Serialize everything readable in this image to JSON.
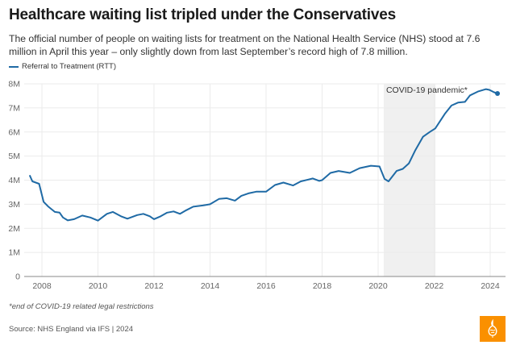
{
  "header": {
    "title": "Healthcare waiting list tripled under the Conservatives",
    "subtitle": "The official number of people on waiting lists for treatment on the National Health Service (NHS) stood at 7.6 million in April this year – only slightly down from last September’s record high of 7.8 million."
  },
  "legend": {
    "label": "Referral to Treatment (RTT)",
    "color": "#1f6aa5"
  },
  "footer": {
    "note": "*end of COVID-19 related legal restrictions",
    "source": "Source: NHS England via IFS | 2024",
    "logo": "Al Jazeera"
  },
  "chart_data": {
    "type": "line",
    "title": "Healthcare waiting list tripled under the Conservatives",
    "xlabel": "",
    "ylabel": "",
    "xlim": [
      2007.45,
      2024.5
    ],
    "ylim": [
      0,
      8000000
    ],
    "grid": true,
    "legend_position": "top-left",
    "x_ticks": [
      2008,
      2010,
      2012,
      2014,
      2016,
      2018,
      2020,
      2022,
      2024
    ],
    "x_tick_labels": [
      "2008",
      "2010",
      "2012",
      "2014",
      "2016",
      "2018",
      "2020",
      "2022",
      "2024"
    ],
    "y_ticks": [
      0,
      1000000,
      2000000,
      3000000,
      4000000,
      5000000,
      6000000,
      7000000,
      8000000
    ],
    "y_tick_labels": [
      "0",
      "1M",
      "2M",
      "3M",
      "4M",
      "5M",
      "6M",
      "7M",
      "8M"
    ],
    "annotations": [
      {
        "type": "shaded-range",
        "label": "COVID-19 pandemic*",
        "x_start": 2020.2,
        "x_end": 2022.05,
        "color": "#f0f0f0"
      }
    ],
    "series": [
      {
        "name": "Referral to Treatment (RTT)",
        "color": "#1f6aa5",
        "end_marker": true,
        "x": [
          2007.57,
          2007.66,
          2007.9,
          2008.06,
          2008.23,
          2008.46,
          2008.63,
          2008.75,
          2008.92,
          2009.15,
          2009.44,
          2009.73,
          2010.0,
          2010.32,
          2010.53,
          2010.82,
          2011.05,
          2011.4,
          2011.62,
          2011.85,
          2012.0,
          2012.24,
          2012.47,
          2012.7,
          2012.93,
          2013.15,
          2013.4,
          2013.74,
          2014.0,
          2014.32,
          2014.6,
          2014.89,
          2015.12,
          2015.37,
          2015.65,
          2016.0,
          2016.32,
          2016.62,
          2016.96,
          2017.24,
          2017.67,
          2017.9,
          2018.0,
          2018.3,
          2018.59,
          2018.99,
          2019.34,
          2019.74,
          2020.05,
          2020.23,
          2020.37,
          2020.66,
          2020.88,
          2021.1,
          2021.33,
          2021.6,
          2021.84,
          2022.04,
          2022.38,
          2022.62,
          2022.85,
          2023.1,
          2023.28,
          2023.56,
          2023.85,
          2023.97,
          2024.14,
          2024.26
        ],
        "values": [
          4180000,
          3950000,
          3850000,
          3100000,
          2900000,
          2680000,
          2650000,
          2450000,
          2330000,
          2380000,
          2530000,
          2450000,
          2320000,
          2600000,
          2680000,
          2500000,
          2400000,
          2550000,
          2600000,
          2500000,
          2380000,
          2500000,
          2650000,
          2700000,
          2600000,
          2750000,
          2900000,
          2950000,
          3000000,
          3220000,
          3250000,
          3150000,
          3350000,
          3450000,
          3520000,
          3520000,
          3800000,
          3900000,
          3780000,
          3950000,
          4070000,
          3970000,
          4000000,
          4300000,
          4380000,
          4300000,
          4500000,
          4600000,
          4570000,
          4050000,
          3950000,
          4380000,
          4470000,
          4700000,
          5250000,
          5800000,
          6000000,
          6150000,
          6750000,
          7100000,
          7220000,
          7250000,
          7520000,
          7680000,
          7780000,
          7750000,
          7650000,
          7600000
        ]
      }
    ]
  }
}
